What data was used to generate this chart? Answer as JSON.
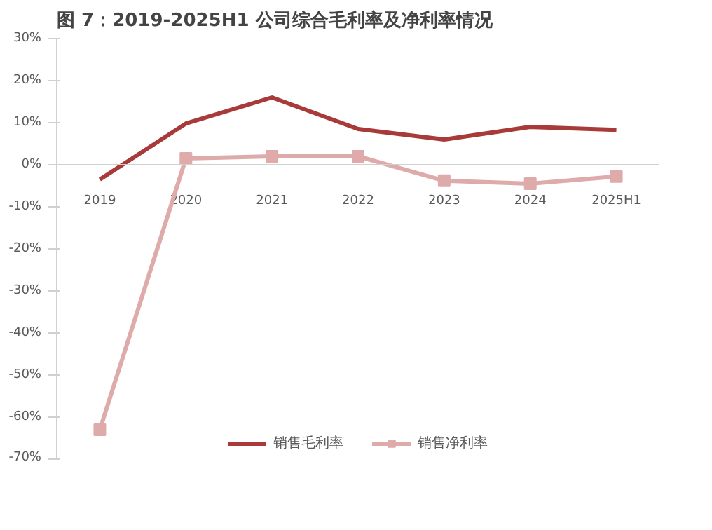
{
  "chart_data": {
    "type": "line",
    "title": "图 7：2019-2025H1 公司综合毛利率及净利率情况",
    "categories": [
      "2019",
      "2020",
      "2021",
      "2022",
      "2023",
      "2024",
      "2025H1"
    ],
    "series": [
      {
        "name": "销售毛利率",
        "color": "#a83a3a",
        "marker": "none",
        "values": [
          -3.5,
          9.8,
          16,
          8.5,
          6,
          9,
          8.3
        ]
      },
      {
        "name": "销售净利率",
        "color": "#deaaaa",
        "marker": "square",
        "values": [
          -63,
          1.5,
          2,
          2,
          -3.8,
          -4.5,
          -2.8
        ]
      }
    ],
    "ylim": [
      -70,
      30
    ],
    "yticks": [
      {
        "value": -70,
        "label": "-70%"
      },
      {
        "value": -60,
        "label": "-60%"
      },
      {
        "value": -50,
        "label": "-50%"
      },
      {
        "value": -40,
        "label": "-40%"
      },
      {
        "value": -30,
        "label": "-30%"
      },
      {
        "value": -20,
        "label": "-20%"
      },
      {
        "value": -10,
        "label": "-10%"
      },
      {
        "value": 0,
        "label": "0%"
      },
      {
        "value": 10,
        "label": "10%"
      },
      {
        "value": 20,
        "label": "20%"
      },
      {
        "value": 30,
        "label": "30%"
      }
    ],
    "grid": false,
    "legend": "bottom",
    "line_style": "solid"
  }
}
